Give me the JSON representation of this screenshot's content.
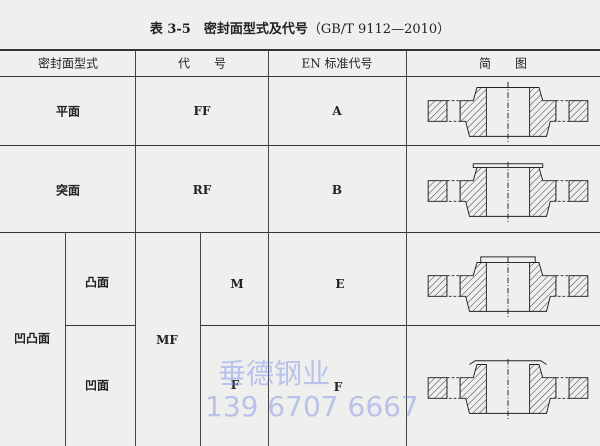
{
  "title": {
    "label": "表 3-5",
    "text": "密封面型式及代号",
    "standard": "（GB/T 9112—2010）"
  },
  "headers": [
    "密封面型式",
    "代　　号",
    "EN 标准代号",
    "简　　图"
  ],
  "rows": [
    {
      "type": "平面",
      "code": "FF",
      "en": "A",
      "diagram": "flat-face-flange"
    },
    {
      "type": "突面",
      "code": "RF",
      "en": "B",
      "diagram": "raised-face-flange"
    },
    {
      "type": "凹凸面",
      "code": "MF",
      "sub": [
        {
          "type": "凸面",
          "code": "M",
          "en": "E",
          "diagram": "male-face-flange"
        },
        {
          "type": "凹面",
          "code": "F",
          "en": "F",
          "diagram": "female-face-flange"
        }
      ]
    }
  ],
  "watermark": {
    "name": "垂德钢业",
    "phone": "139 6707 6667"
  }
}
